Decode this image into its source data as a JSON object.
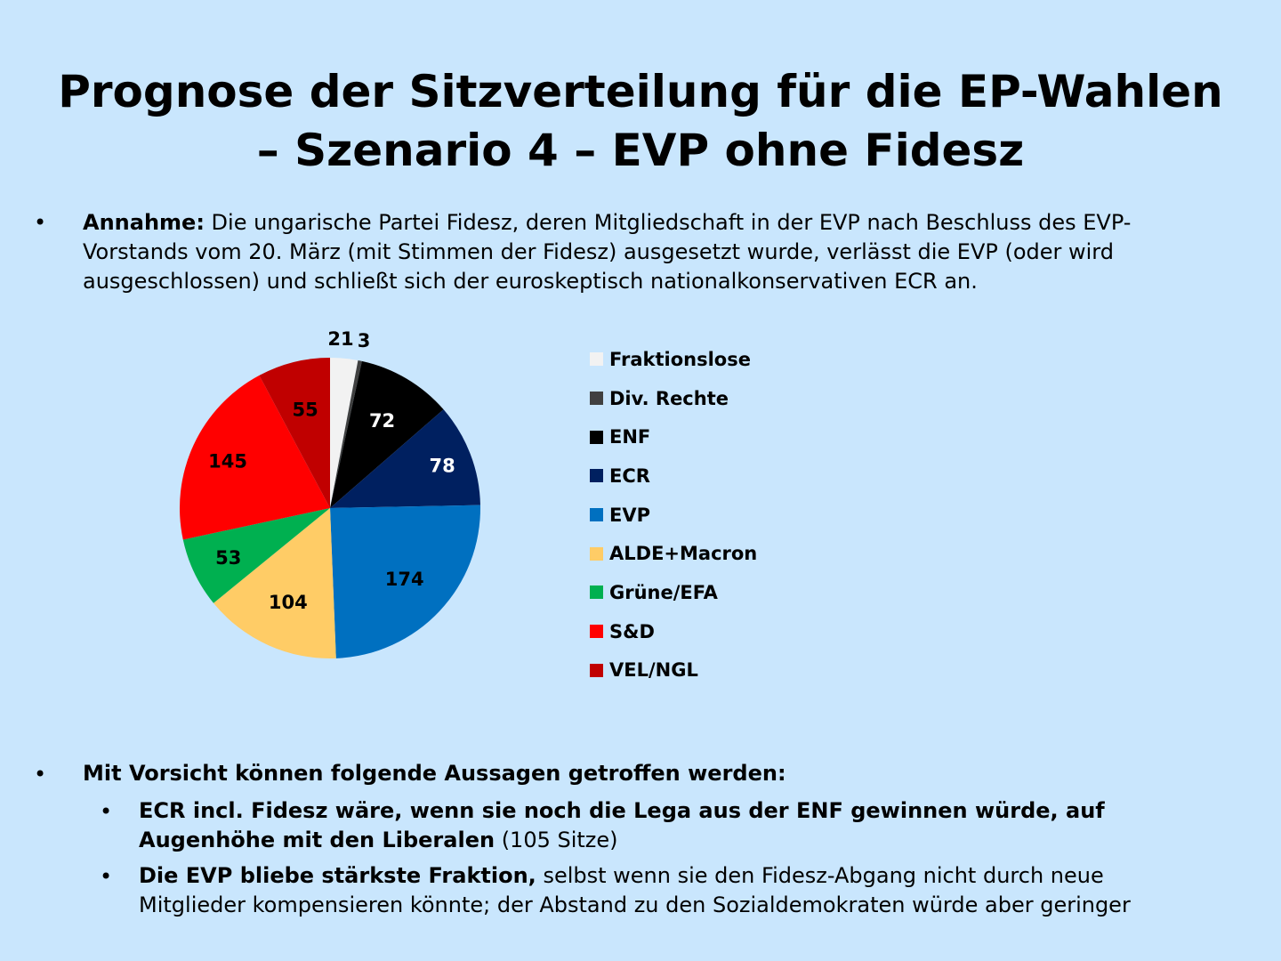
{
  "title": {
    "line1": "Prognose der Sitzverteilung für die EP-Wahlen",
    "line2": "– Szenario 4 – EVP ohne Fidesz"
  },
  "assumption": {
    "label": "Annahme:",
    "text": " Die ungarische Partei Fidesz, deren Mitgliedschaft in der EVP nach Beschluss des EVP-Vorstands vom 20. März (mit Stimmen der Fidesz) ausgesetzt wurde, verlässt die EVP (oder wird ausgeschlossen) und schließt sich der euroskeptisch nationalkonservativen ECR an."
  },
  "conclusions": {
    "heading": "Mit Vorsicht können folgende Aussagen getroffen werden:",
    "items": [
      {
        "bold": "ECR incl. Fidesz wäre, wenn sie noch die Lega aus der ENF gewinnen würde, auf Augenhöhe mit den Liberalen",
        "text": " (105 Sitze)"
      },
      {
        "bold": "Die EVP bliebe stärkste Fraktion,",
        "text": " selbst wenn sie den Fidesz-Abgang nicht durch neue Mitglieder kompensieren könnte; der Abstand zu den Sozialdemokraten würde aber geringer"
      }
    ]
  },
  "chart_data": {
    "type": "pie",
    "title": "",
    "legend_position": "right",
    "categories": [
      "Fraktionslose",
      "Div. Rechte",
      "ENF",
      "ECR",
      "EVP",
      "ALDE+Macron",
      "Grüne/EFA",
      "S&D",
      "VEL/NGL"
    ],
    "values": [
      21,
      3,
      72,
      78,
      174,
      104,
      53,
      145,
      55
    ],
    "colors": [
      "#f2f2f2",
      "#404040",
      "#000000",
      "#002060",
      "#0070c0",
      "#ffcc66",
      "#00b050",
      "#ff0000",
      "#c00000"
    ],
    "label_colors": [
      "#000",
      "#000",
      "#fff",
      "#fff",
      "#000",
      "#000",
      "#000",
      "#000",
      "#000"
    ]
  }
}
